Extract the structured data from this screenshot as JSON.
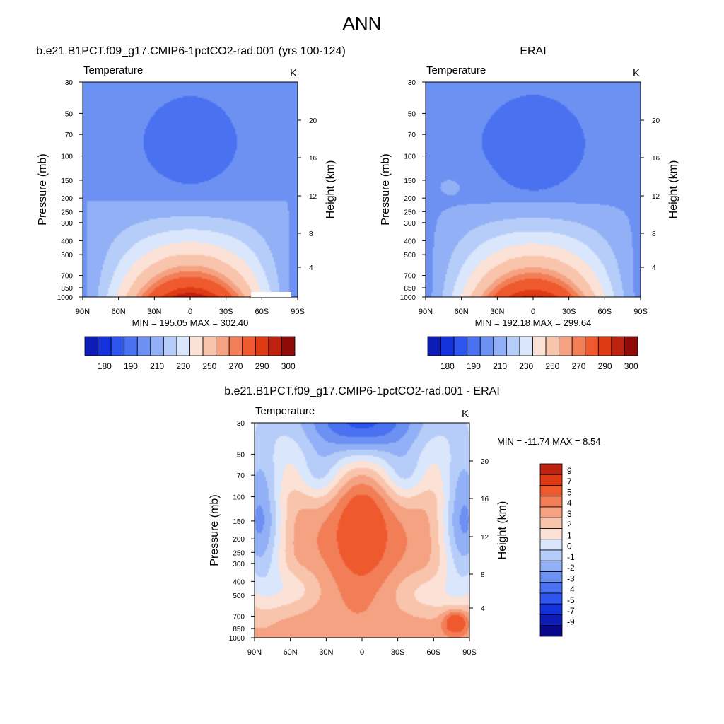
{
  "page_title": "ANN",
  "chart_data": [
    {
      "type": "heatmap",
      "id": "model",
      "title": "b.e21.B1PCT.f09_g17.CMIP6-1pctCO2-rad.001 (yrs 100-124)",
      "left_label": "Temperature",
      "right_label": "K",
      "ylabel": "Pressure (mb)",
      "y2label": "Height (km)",
      "x_ticks": [
        "90N",
        "60N",
        "30N",
        "0",
        "30S",
        "60S",
        "90S"
      ],
      "y_ticks": [
        "30",
        "50",
        "70",
        "100",
        "150",
        "200",
        "250",
        "300",
        "400",
        "500",
        "700",
        "850",
        "1000"
      ],
      "y2_ticks": [
        "20",
        "16",
        "12",
        "8",
        "4"
      ],
      "min_max": "MIN = 195.05  MAX = 302.40",
      "contour_levels": [
        180,
        185,
        190,
        200,
        210,
        220,
        230,
        240,
        250,
        260,
        270,
        275,
        280,
        290,
        295,
        300
      ],
      "colorbar_labels": [
        "180",
        "190",
        "210",
        "230",
        "250",
        "270",
        "290",
        "300"
      ]
    },
    {
      "type": "heatmap",
      "id": "obs",
      "title": "ERAI",
      "left_label": "Temperature",
      "right_label": "K",
      "ylabel": "Pressure (mb)",
      "y2label": "Height (km)",
      "x_ticks": [
        "90N",
        "60N",
        "30N",
        "0",
        "30S",
        "60S",
        "90S"
      ],
      "y_ticks": [
        "30",
        "50",
        "70",
        "100",
        "150",
        "200",
        "250",
        "300",
        "400",
        "500",
        "700",
        "850",
        "1000"
      ],
      "y2_ticks": [
        "20",
        "16",
        "12",
        "8",
        "4"
      ],
      "min_max": "MIN = 192.18  MAX = 299.64",
      "contour_levels": [
        180,
        185,
        190,
        200,
        210,
        220,
        230,
        240,
        250,
        260,
        270,
        275,
        280,
        290,
        295,
        300
      ],
      "colorbar_labels": [
        "180",
        "190",
        "210",
        "230",
        "250",
        "270",
        "290",
        "300"
      ]
    },
    {
      "type": "heatmap",
      "id": "diff",
      "title": "b.e21.B1PCT.f09_g17.CMIP6-1pctCO2-rad.001 - ERAI",
      "left_label": "Temperature",
      "right_label": "K",
      "ylabel": "Pressure (mb)",
      "y2label": "Height (km)",
      "x_ticks": [
        "90N",
        "60N",
        "30N",
        "0",
        "30S",
        "60S",
        "90S"
      ],
      "y_ticks": [
        "30",
        "50",
        "70",
        "100",
        "150",
        "200",
        "250",
        "300",
        "400",
        "500",
        "700",
        "850",
        "1000"
      ],
      "y2_ticks": [
        "20",
        "16",
        "12",
        "8",
        "4"
      ],
      "min_max": "MIN = -11.74  MAX =   8.54",
      "colorbar_labels": [
        "9",
        "7",
        "5",
        "4",
        "3",
        "2",
        "1",
        "0",
        "-1",
        "-2",
        "-3",
        "-4",
        "-5",
        "-7",
        "-9"
      ]
    }
  ],
  "colors": {
    "abs_scale": [
      "#08088c",
      "#0c1cb4",
      "#1432dc",
      "#2d55ee",
      "#4a72f0",
      "#6d91f3",
      "#92b0f6",
      "#b7cdf9",
      "#d9e6fb",
      "#fce2d6",
      "#f9c4ac",
      "#f5a283",
      "#f27e57",
      "#ef592e",
      "#de3a14",
      "#bd2210",
      "#8f0b07"
    ],
    "diff_scale": [
      "#08088c",
      "#0c1cb4",
      "#1432dc",
      "#2d55ee",
      "#4a72f0",
      "#6d91f3",
      "#92b0f6",
      "#b7cdf9",
      "#d9e6fb",
      "#fce2d6",
      "#f9c4ac",
      "#f5a283",
      "#f27e57",
      "#ef592e",
      "#de3a14",
      "#bd2210",
      "#8f0b07"
    ]
  }
}
